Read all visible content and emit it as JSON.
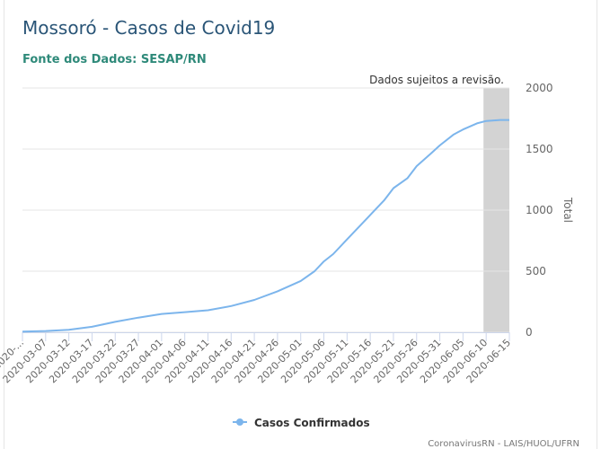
{
  "title": "Mossoró - Casos de Covid19",
  "subtitle": "Fonte dos Dados: SESAP/RN",
  "credits": "CoronavirusRN - LAIS/HUOL/UFRN",
  "colors": {
    "line": "#7cb5ec",
    "band": "#d3d3d3",
    "grid": "#e6e6e6"
  },
  "chart_data": {
    "type": "line",
    "ylabel": "Total",
    "yaxis_position": "right",
    "ylim": [
      0,
      2000
    ],
    "yticks": [
      0,
      500,
      1000,
      1500,
      2000
    ],
    "xticks": [
      "2020-...",
      "2020-03-07",
      "2020-03-12",
      "2020-03-17",
      "2020-03-22",
      "2020-03-27",
      "2020-04-01",
      "2020-04-06",
      "2020-04-11",
      "2020-04-16",
      "2020-04-21",
      "2020-04-26",
      "2020-05-01",
      "2020-05-06",
      "2020-05-11",
      "2020-05-16",
      "2020-05-21",
      "2020-05-26",
      "2020-05-31",
      "2020-06-05",
      "2020-06-10",
      "2020-06-15"
    ],
    "plot_band": {
      "from": "2020-06-10",
      "to": "2020-06-15",
      "label": "Dados sujeitos a revisão."
    },
    "legend": "bottom-center",
    "series": [
      {
        "name": "Casos Confirmados",
        "x": [
          "2020-03-02",
          "2020-03-07",
          "2020-03-12",
          "2020-03-17",
          "2020-03-22",
          "2020-03-27",
          "2020-04-01",
          "2020-04-06",
          "2020-04-11",
          "2020-04-16",
          "2020-04-21",
          "2020-04-26",
          "2020-05-01",
          "2020-05-04",
          "2020-05-06",
          "2020-05-08",
          "2020-05-11",
          "2020-05-14",
          "2020-05-16",
          "2020-05-19",
          "2020-05-21",
          "2020-05-24",
          "2020-05-26",
          "2020-05-29",
          "2020-05-31",
          "2020-06-03",
          "2020-06-05",
          "2020-06-08",
          "2020-06-10",
          "2020-06-13",
          "2020-06-15"
        ],
        "values": [
          5,
          10,
          20,
          45,
          85,
          120,
          150,
          165,
          180,
          215,
          265,
          335,
          420,
          500,
          580,
          640,
          760,
          880,
          960,
          1080,
          1180,
          1260,
          1360,
          1460,
          1530,
          1620,
          1660,
          1710,
          1730,
          1738,
          1738
        ]
      }
    ]
  }
}
